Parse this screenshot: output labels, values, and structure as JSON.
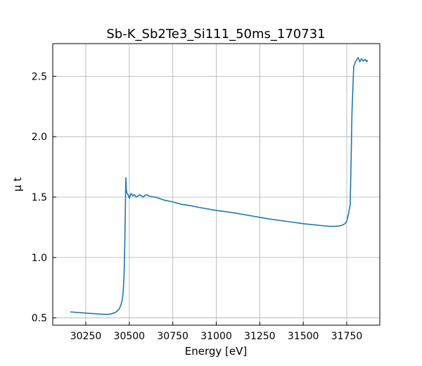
{
  "chart_data": {
    "type": "line",
    "title": "Sb-K_Sb2Te3_Si111_50ms_170731",
    "xlabel": "Energy [eV]",
    "ylabel": "μ t",
    "xlim": [
      30060,
      31940
    ],
    "ylim": [
      0.44,
      2.77
    ],
    "xticks": [
      30250,
      30500,
      30750,
      31000,
      31250,
      31500,
      31750
    ],
    "xtick_labels": [
      "30250",
      "30500",
      "30750",
      "31000",
      "31250",
      "31500",
      "31750"
    ],
    "yticks": [
      0.5,
      1.0,
      1.5,
      2.0,
      2.5
    ],
    "ytick_labels": [
      "0.5",
      "1.0",
      "1.5",
      "2.0",
      "2.5"
    ],
    "grid": true,
    "color": "#1f77b4",
    "series": [
      {
        "x": [
          30160,
          30250,
          30300,
          30350,
          30380,
          30400,
          30420,
          30440,
          30450,
          30460,
          30465,
          30470,
          30474,
          30478,
          30480,
          30483,
          30487,
          30493,
          30500,
          30510,
          30520,
          30530,
          30540,
          30550,
          30560,
          30570,
          30580,
          30590,
          30600,
          30620,
          30650,
          30700,
          30750,
          30800,
          30850,
          30900,
          31000,
          31100,
          31200,
          31300,
          31400,
          31500,
          31600,
          31650,
          31680,
          31700,
          31720,
          31740,
          31750,
          31760,
          31770,
          31775,
          31780,
          31790,
          31800,
          31815,
          31825,
          31835,
          31845,
          31855,
          31865,
          31870
        ],
        "y": [
          0.55,
          0.54,
          0.535,
          0.53,
          0.53,
          0.535,
          0.545,
          0.57,
          0.6,
          0.65,
          0.72,
          0.85,
          1.1,
          1.45,
          1.66,
          1.56,
          1.53,
          1.52,
          1.49,
          1.53,
          1.51,
          1.52,
          1.5,
          1.51,
          1.52,
          1.51,
          1.5,
          1.515,
          1.52,
          1.505,
          1.5,
          1.475,
          1.46,
          1.44,
          1.43,
          1.415,
          1.39,
          1.37,
          1.345,
          1.32,
          1.3,
          1.28,
          1.265,
          1.258,
          1.258,
          1.26,
          1.265,
          1.28,
          1.3,
          1.36,
          1.44,
          1.8,
          2.2,
          2.58,
          2.62,
          2.655,
          2.62,
          2.645,
          2.625,
          2.64,
          2.62,
          2.635
        ]
      }
    ]
  }
}
